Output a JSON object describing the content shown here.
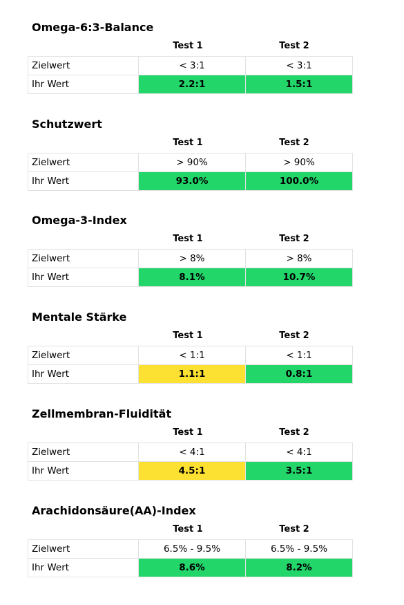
{
  "column_headers": [
    "Test 1",
    "Test 2"
  ],
  "row_labels": {
    "target": "Zielwert",
    "yours": "Ihr Wert"
  },
  "status_colors": {
    "good": "#22d66a",
    "warning": "#fce032"
  },
  "sections": [
    {
      "title": "Omega-6:3-Balance",
      "target": [
        "< 3:1",
        "< 3:1"
      ],
      "values": [
        "2.2:1",
        "1.5:1"
      ],
      "status": [
        "good",
        "good"
      ]
    },
    {
      "title": "Schutzwert",
      "target": [
        "> 90%",
        "> 90%"
      ],
      "values": [
        "93.0%",
        "100.0%"
      ],
      "status": [
        "good",
        "good"
      ]
    },
    {
      "title": "Omega-3-Index",
      "target": [
        "> 8%",
        "> 8%"
      ],
      "values": [
        "8.1%",
        "10.7%"
      ],
      "status": [
        "good",
        "good"
      ]
    },
    {
      "title": "Mentale Stärke",
      "target": [
        "< 1:1",
        "< 1:1"
      ],
      "values": [
        "1.1:1",
        "0.8:1"
      ],
      "status": [
        "warning",
        "good"
      ]
    },
    {
      "title": "Zellmembran-Fluidität",
      "target": [
        "< 4:1",
        "< 4:1"
      ],
      "values": [
        "4.5:1",
        "3.5:1"
      ],
      "status": [
        "warning",
        "good"
      ]
    },
    {
      "title": "Arachidonsäure(AA)-Index",
      "target": [
        "6.5% - 9.5%",
        "6.5% - 9.5%"
      ],
      "values": [
        "8.6%",
        "8.2%"
      ],
      "status": [
        "good",
        "good"
      ]
    }
  ]
}
